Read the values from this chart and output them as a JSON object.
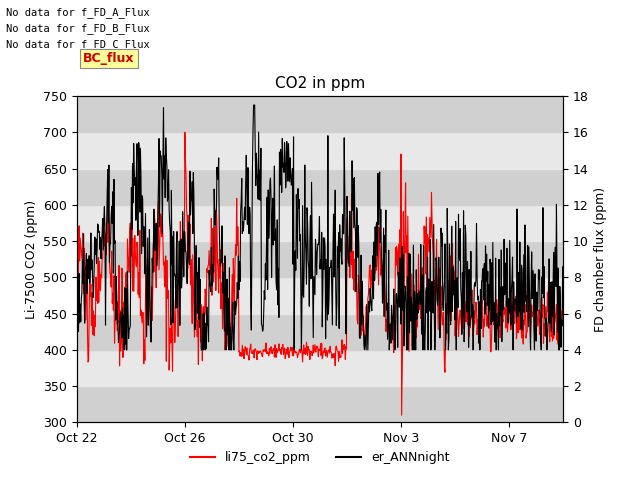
{
  "title": "CO2 in ppm",
  "ylabel_left": "Li-7500 CO2 (ppm)",
  "ylabel_right": "FD chamber flux (ppm)",
  "ylim_left": [
    300,
    750
  ],
  "ylim_right": [
    0,
    18
  ],
  "yticks_left": [
    300,
    350,
    400,
    450,
    500,
    550,
    600,
    650,
    700,
    750
  ],
  "yticks_right": [
    0,
    2,
    4,
    6,
    8,
    10,
    12,
    14,
    16,
    18
  ],
  "xtick_labels": [
    "Oct 22",
    "Oct 26",
    "Oct 30",
    "Nov 3",
    "Nov 7"
  ],
  "no_data_texts": [
    "No data for f_FD_A_Flux",
    "No data for f_FD_B_Flux",
    "No data for f_FD_C_Flux"
  ],
  "bc_flux_label": "BC_flux",
  "bc_flux_box_color": "#ffff99",
  "bc_flux_text_color": "#cc0000",
  "plot_bg_color": "#e8e8e8",
  "band_color_dark": "#d0d0d0",
  "band_color_light": "#e8e8e8",
  "line1_color": "red",
  "line2_color": "black",
  "line1_lw": 0.8,
  "line2_lw": 0.8
}
